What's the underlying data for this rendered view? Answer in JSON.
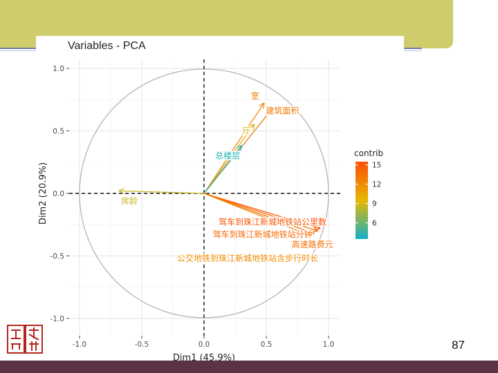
{
  "page": {
    "number": "87"
  },
  "chart_data": {
    "type": "scatter",
    "title": "Variables - PCA",
    "xlabel": "Dim1 (45.9%)",
    "ylabel": "Dim2 (20.9%)",
    "xlim": [
      -1.0,
      1.0
    ],
    "ylim": [
      -1.0,
      1.0
    ],
    "x_ticks": [
      "-1.0",
      "-0.5",
      "0.0",
      "0.5",
      "1.0"
    ],
    "y_ticks": [
      "-1.0",
      "-0.5",
      "0.0",
      "0.5",
      "1.0"
    ],
    "grid": true,
    "legend": {
      "title": "contrib",
      "position": "right",
      "ticks": [
        "15",
        "12",
        "9",
        "6"
      ],
      "gradient": [
        "#14b0c6",
        "#e7b800",
        "#fc4e07"
      ],
      "range": [
        3.5,
        15.5
      ]
    },
    "variables": [
      {
        "name": "室",
        "x": 0.48,
        "y": 0.72,
        "contrib": 12.5,
        "label_x": 0.41,
        "label_y": 0.78
      },
      {
        "name": "建筑面积",
        "x": 0.55,
        "y": 0.68,
        "contrib": 13.0,
        "label_x": 0.63,
        "label_y": 0.66
      },
      {
        "name": "厅",
        "x": 0.4,
        "y": 0.55,
        "contrib": 9.0,
        "label_x": 0.34,
        "label_y": 0.5
      },
      {
        "name": "总楼层",
        "x": 0.3,
        "y": 0.38,
        "contrib": 4.0,
        "label_x": 0.19,
        "label_y": 0.3
      },
      {
        "name": "房龄",
        "x": -0.68,
        "y": 0.02,
        "contrib": 8.5,
        "label_x": -0.6,
        "label_y": -0.06
      },
      {
        "name": "驾车到珠江新城地铁站公里数",
        "x": 0.93,
        "y": -0.28,
        "contrib": 15.0,
        "label_x": 0.55,
        "label_y": -0.23
      },
      {
        "name": "驾车到珠江新城地铁站分钟",
        "x": 0.88,
        "y": -0.32,
        "contrib": 14.0,
        "label_x": 0.47,
        "label_y": -0.33
      },
      {
        "name": "高速路费元",
        "x": 0.91,
        "y": -0.3,
        "contrib": 13.5,
        "label_x": 0.87,
        "label_y": -0.41
      },
      {
        "name": "公交地铁到珠江新城地铁站含步行时长",
        "x": 0.86,
        "y": -0.34,
        "contrib": 12.0,
        "label_x": 0.35,
        "label_y": -0.52
      }
    ]
  }
}
